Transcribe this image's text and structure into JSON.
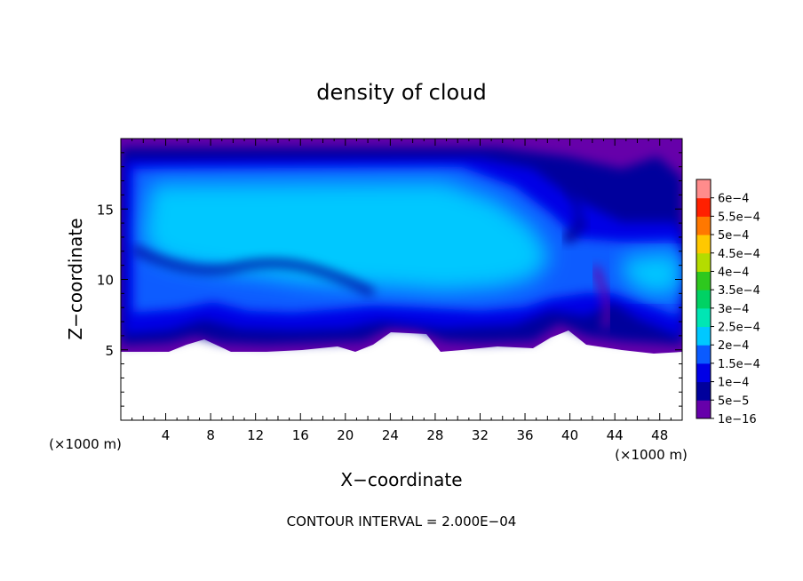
{
  "chart_data": {
    "type": "heatmap",
    "title": "density of cloud",
    "xlabel": "X−coordinate",
    "ylabel": "Z−coordinate",
    "x_unit": "(×1000 m)",
    "y_unit": "(×1000 m)",
    "x_range": [
      0,
      50
    ],
    "y_range": [
      0,
      20
    ],
    "x_ticks": [
      4,
      8,
      12,
      16,
      20,
      24,
      28,
      32,
      36,
      40,
      44,
      48
    ],
    "y_ticks": [
      5,
      10,
      15
    ],
    "cloud_base_km": 5,
    "cloud_top_km": 19.5,
    "colorbar": {
      "levels": [
        "1e−16",
        "5e−5",
        "1e−4",
        "1.5e−4",
        "2e−4",
        "2.5e−4",
        "3e−4",
        "3.5e−4",
        "4e−4",
        "4.5e−4",
        "5e−4",
        "5.5e−4",
        "6e−4"
      ],
      "colors": [
        "#6600aa",
        "#00009c",
        "#0000e6",
        "#0a5bff",
        "#00c8ff",
        "#00e6b4",
        "#00d264",
        "#2ec81e",
        "#b4dc00",
        "#ffc800",
        "#ff7800",
        "#ff2000",
        "#ff8c8c"
      ]
    },
    "footnote": "CONTOUR INTERVAL = 2.000E−04"
  }
}
